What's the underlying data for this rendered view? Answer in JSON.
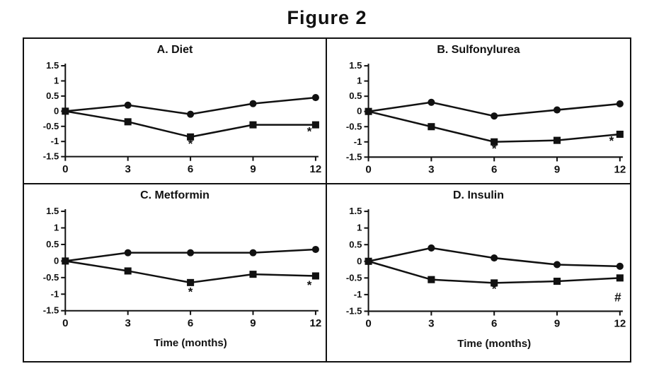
{
  "figure_title": "Figure 2",
  "x_axis_label": "Time (months)",
  "colors": {
    "ink": "#111111",
    "background": "#ffffff"
  },
  "axis": {
    "xlim": [
      0,
      12
    ],
    "ylim": [
      -1.5,
      1.5
    ],
    "grid": false,
    "x_ticks": [
      {
        "value": 0,
        "label": "0"
      },
      {
        "value": 3,
        "label": "3"
      },
      {
        "value": 6,
        "label": "6"
      },
      {
        "value": 9,
        "label": "9"
      },
      {
        "value": 12,
        "label": "12"
      }
    ],
    "y_ticks": [
      {
        "value": 1.5,
        "label": "1.5"
      },
      {
        "value": 1,
        "label": "1"
      },
      {
        "value": 0.5,
        "label": "0.5"
      },
      {
        "value": 0,
        "label": "0"
      },
      {
        "value": -0.5,
        "label": "-0.5"
      },
      {
        "value": -1,
        "label": "-1"
      },
      {
        "value": -1.5,
        "label": "-1.5"
      }
    ]
  },
  "chart_data": [
    {
      "type": "line",
      "title": "A. Diet",
      "x": [
        0,
        3,
        6,
        9,
        12
      ],
      "series": [
        {
          "name": "circle-series",
          "marker": "circle",
          "values": [
            0,
            0.2,
            -0.1,
            0.25,
            0.45
          ]
        },
        {
          "name": "square-series",
          "marker": "square",
          "values": [
            0,
            -0.35,
            -0.85,
            -0.45,
            -0.45
          ]
        }
      ],
      "annotations": [
        {
          "x": 6,
          "y": -1.2,
          "text": "*"
        },
        {
          "x": 11.7,
          "y": -0.8,
          "text": "*"
        }
      ],
      "show_xlabel": false
    },
    {
      "type": "line",
      "title": "B. Sulfonylurea",
      "x": [
        0,
        3,
        6,
        9,
        12
      ],
      "series": [
        {
          "name": "circle-series",
          "marker": "circle",
          "values": [
            0,
            0.3,
            -0.15,
            0.05,
            0.25
          ]
        },
        {
          "name": "square-series",
          "marker": "square",
          "values": [
            0,
            -0.5,
            -1.0,
            -0.95,
            -0.75
          ]
        }
      ],
      "annotations": [
        {
          "x": 6,
          "y": -1.35,
          "text": "*"
        },
        {
          "x": 11.6,
          "y": -1.1,
          "text": "*"
        }
      ],
      "show_xlabel": false
    },
    {
      "type": "line",
      "title": "C. Metformin",
      "x": [
        0,
        3,
        6,
        9,
        12
      ],
      "series": [
        {
          "name": "circle-series",
          "marker": "circle",
          "values": [
            0,
            0.25,
            0.25,
            0.25,
            0.35
          ]
        },
        {
          "name": "square-series",
          "marker": "square",
          "values": [
            0,
            -0.3,
            -0.65,
            -0.4,
            -0.45
          ]
        }
      ],
      "annotations": [
        {
          "x": 6,
          "y": -1.05,
          "text": "*"
        },
        {
          "x": 11.7,
          "y": -0.85,
          "text": "*"
        }
      ],
      "show_xlabel": true
    },
    {
      "type": "line",
      "title": "D. Insulin",
      "x": [
        0,
        3,
        6,
        9,
        12
      ],
      "series": [
        {
          "name": "circle-series",
          "marker": "circle",
          "values": [
            0,
            0.4,
            0.1,
            -0.1,
            -0.15
          ]
        },
        {
          "name": "square-series",
          "marker": "square",
          "values": [
            0,
            -0.55,
            -0.65,
            -0.6,
            -0.5
          ]
        }
      ],
      "annotations": [
        {
          "x": 6,
          "y": -0.95,
          "text": "*"
        },
        {
          "x": 11.9,
          "y": -1.2,
          "text": "#"
        }
      ],
      "show_xlabel": true
    }
  ]
}
